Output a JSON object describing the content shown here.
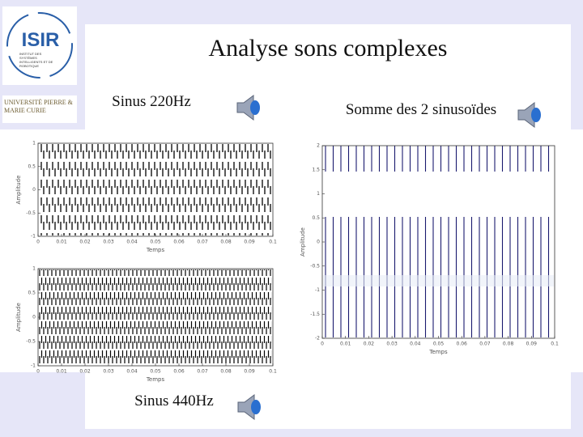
{
  "logos": {
    "isir": "ISIR",
    "isir_sub": "INSTITUT DES SYSTÈMES INTELLIGENTS ET DE ROBOTIQUE",
    "upmc": "UNIVERSITÉ PIERRE & MARIE CURIE"
  },
  "title": "Analyse sons complexes",
  "labels": {
    "sinus1": "Sinus 220Hz",
    "sinus2": "Sinus 440Hz",
    "somme": "Somme des 2 sinusoïdes"
  },
  "charts": [
    {
      "type": "line",
      "xlim": [
        0,
        0.1
      ],
      "xticks": [
        0,
        0.01,
        0.02,
        0.03,
        0.04,
        0.05,
        0.06,
        0.07,
        0.08,
        0.09,
        0.1
      ],
      "ylim": [
        -1,
        1
      ],
      "yticks": [
        -1,
        -0.5,
        0,
        0.5,
        1
      ],
      "xlabel": "Temps",
      "ylabel": "Amplitude"
    },
    {
      "type": "line",
      "xlim": [
        0,
        0.1
      ],
      "xticks": [
        0,
        0.01,
        0.02,
        0.03,
        0.04,
        0.05,
        0.06,
        0.07,
        0.08,
        0.09,
        0.1
      ],
      "ylim": [
        -1,
        1
      ],
      "yticks": [
        -1,
        -0.5,
        0,
        0.5,
        1
      ],
      "xlabel": "Temps",
      "ylabel": "Amplitude"
    },
    {
      "type": "line",
      "xlim": [
        0,
        0.1
      ],
      "xticks": [
        0,
        0.01,
        0.02,
        0.03,
        0.04,
        0.05,
        0.06,
        0.07,
        0.08,
        0.09,
        0.1
      ],
      "ylim": [
        -2,
        2
      ],
      "yticks": [
        -2,
        -1.5,
        -1,
        -0.5,
        0,
        0.5,
        1,
        1.5,
        2
      ],
      "xlabel": "Temps",
      "ylabel": "Amplitude"
    }
  ]
}
